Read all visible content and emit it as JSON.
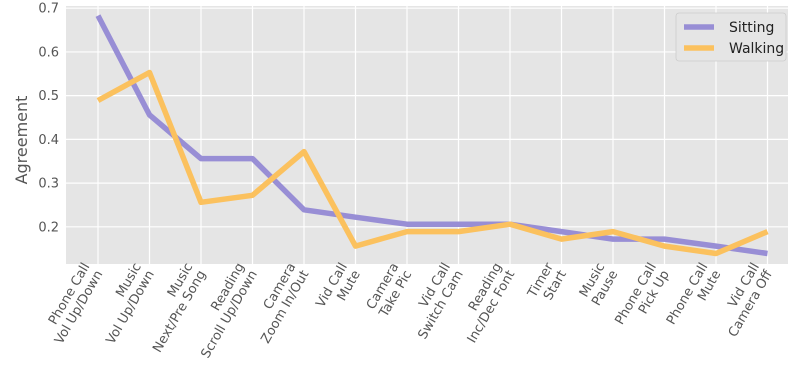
{
  "chart_data": {
    "type": "line",
    "title": "",
    "xlabel": "",
    "ylabel": "Agreement",
    "ylim": [
      0.115,
      0.705
    ],
    "yticks": [
      0.2,
      0.3,
      0.4,
      0.5,
      0.6,
      0.7
    ],
    "ytick_labels": [
      "0.2",
      "0.3",
      "0.4",
      "0.5",
      "0.6",
      "0.7"
    ],
    "grid": true,
    "legend_position": "top-right",
    "categories": [
      [
        "Phone Call",
        "Vol Up/Down"
      ],
      [
        "Music",
        "Vol Up/Down"
      ],
      [
        "Music",
        "Next/Pre Song"
      ],
      [
        "Reading",
        "Scroll Up/Down"
      ],
      [
        "Camera",
        "Zoom In/Out"
      ],
      [
        "Vid Call",
        "Mute"
      ],
      [
        "Camera",
        "Take Pic"
      ],
      [
        "Vid Call",
        "Switch Cam"
      ],
      [
        "Reading",
        "Inc/Dec Font"
      ],
      [
        "Timer",
        "Start"
      ],
      [
        "Music",
        "Pause"
      ],
      [
        "Phone Call",
        "Pick Up"
      ],
      [
        "Phone Call",
        "Mute"
      ],
      [
        "Vid Call",
        "Camera Off"
      ]
    ],
    "series": [
      {
        "name": "Sitting",
        "color": "#988ED5",
        "values": [
          0.683,
          0.456,
          0.356,
          0.356,
          0.239,
          0.222,
          0.206,
          0.206,
          0.206,
          0.189,
          0.172,
          0.172,
          0.156,
          0.139
        ]
      },
      {
        "name": "Walking",
        "color": "#FBC15E",
        "values": [
          0.489,
          0.553,
          0.256,
          0.272,
          0.372,
          0.156,
          0.189,
          0.189,
          0.206,
          0.172,
          0.189,
          0.156,
          0.139,
          0.189
        ]
      }
    ]
  },
  "style": {
    "plot_background": "#E5E5E5",
    "grid_color": "#FFFFFF"
  }
}
